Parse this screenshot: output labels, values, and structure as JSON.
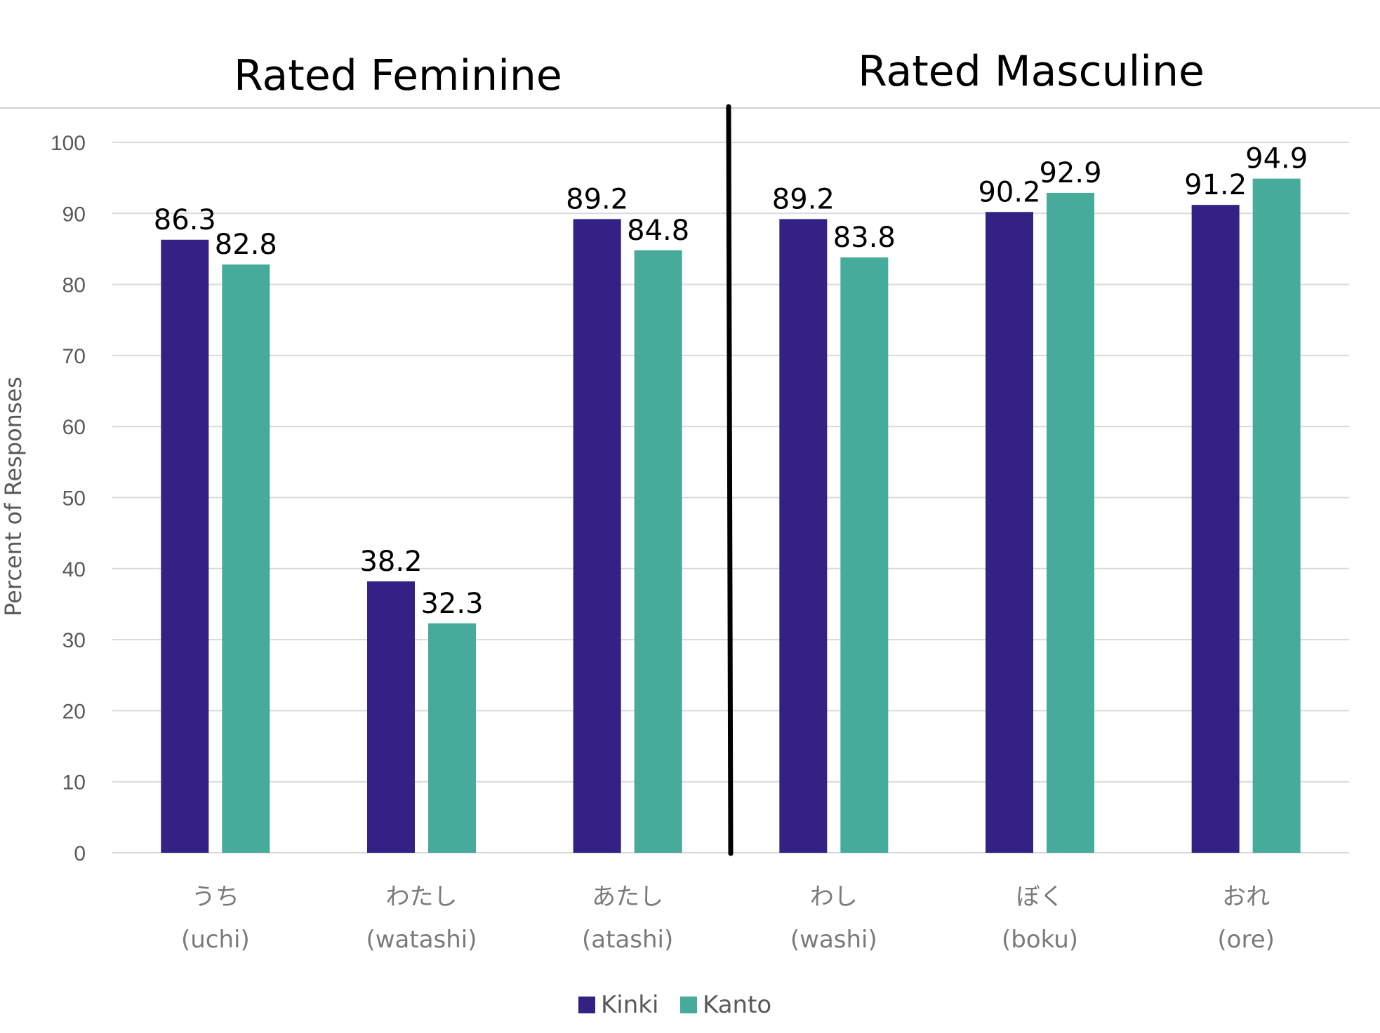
{
  "chart_data": {
    "type": "bar",
    "section_labels": [
      "Rated Feminine",
      "Rated Masculine"
    ],
    "categories": [
      {
        "jp": "うち",
        "romaji": "(uchi)"
      },
      {
        "jp": "わたし",
        "romaji": "(watashi)"
      },
      {
        "jp": "あたし",
        "romaji": "(atashi)"
      },
      {
        "jp": "わし",
        "romaji": "(washi)"
      },
      {
        "jp": "ぼく",
        "romaji": "(boku)"
      },
      {
        "jp": "おれ",
        "romaji": "(ore)"
      }
    ],
    "series": [
      {
        "name": "Kinki",
        "color": "#332284",
        "values": [
          86.3,
          38.2,
          89.2,
          89.2,
          90.2,
          91.2
        ]
      },
      {
        "name": "Kanto",
        "color": "#46ab9a",
        "values": [
          82.8,
          32.3,
          84.8,
          83.8,
          92.9,
          94.9
        ]
      }
    ],
    "ylabel": "Percent of Responses",
    "ylim": [
      0,
      100
    ],
    "yticks": [
      0,
      10,
      20,
      30,
      40,
      50,
      60,
      70,
      80,
      90,
      100
    ],
    "grid": true,
    "legend_position": "bottom-center",
    "divider_after_category": 3
  }
}
